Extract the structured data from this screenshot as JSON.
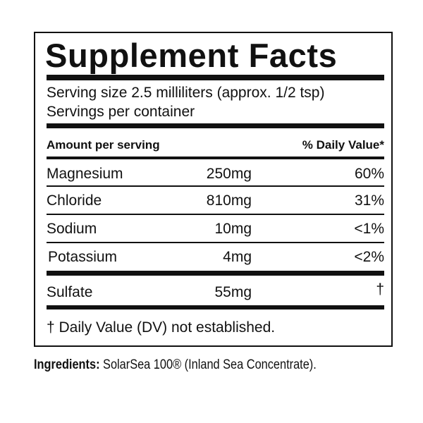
{
  "title": "Supplement Facts",
  "serving_size": "Serving size 2.5 milliliters (approx. 1/2 tsp)",
  "servings_per_container": "Servings per container",
  "header": {
    "amount": "Amount per serving",
    "daily_value": "% Daily Value*"
  },
  "nutrients": [
    {
      "name": "Magnesium",
      "amount": "250mg",
      "dv": "60%"
    },
    {
      "name": "Chloride",
      "amount": "810mg",
      "dv": "31%"
    },
    {
      "name": "Sodium",
      "amount": "10mg",
      "dv": "<1%"
    },
    {
      "name": "Potassium",
      "amount": "4mg",
      "dv": "<2%"
    },
    {
      "name": "Sulfate",
      "amount": "55mg",
      "dv": "†"
    }
  ],
  "footnote": "† Daily Value (DV) not established.",
  "ingredients": {
    "label": "Ingredients:",
    "text": "SolarSea 100® (Inland Sea Concentrate)."
  }
}
